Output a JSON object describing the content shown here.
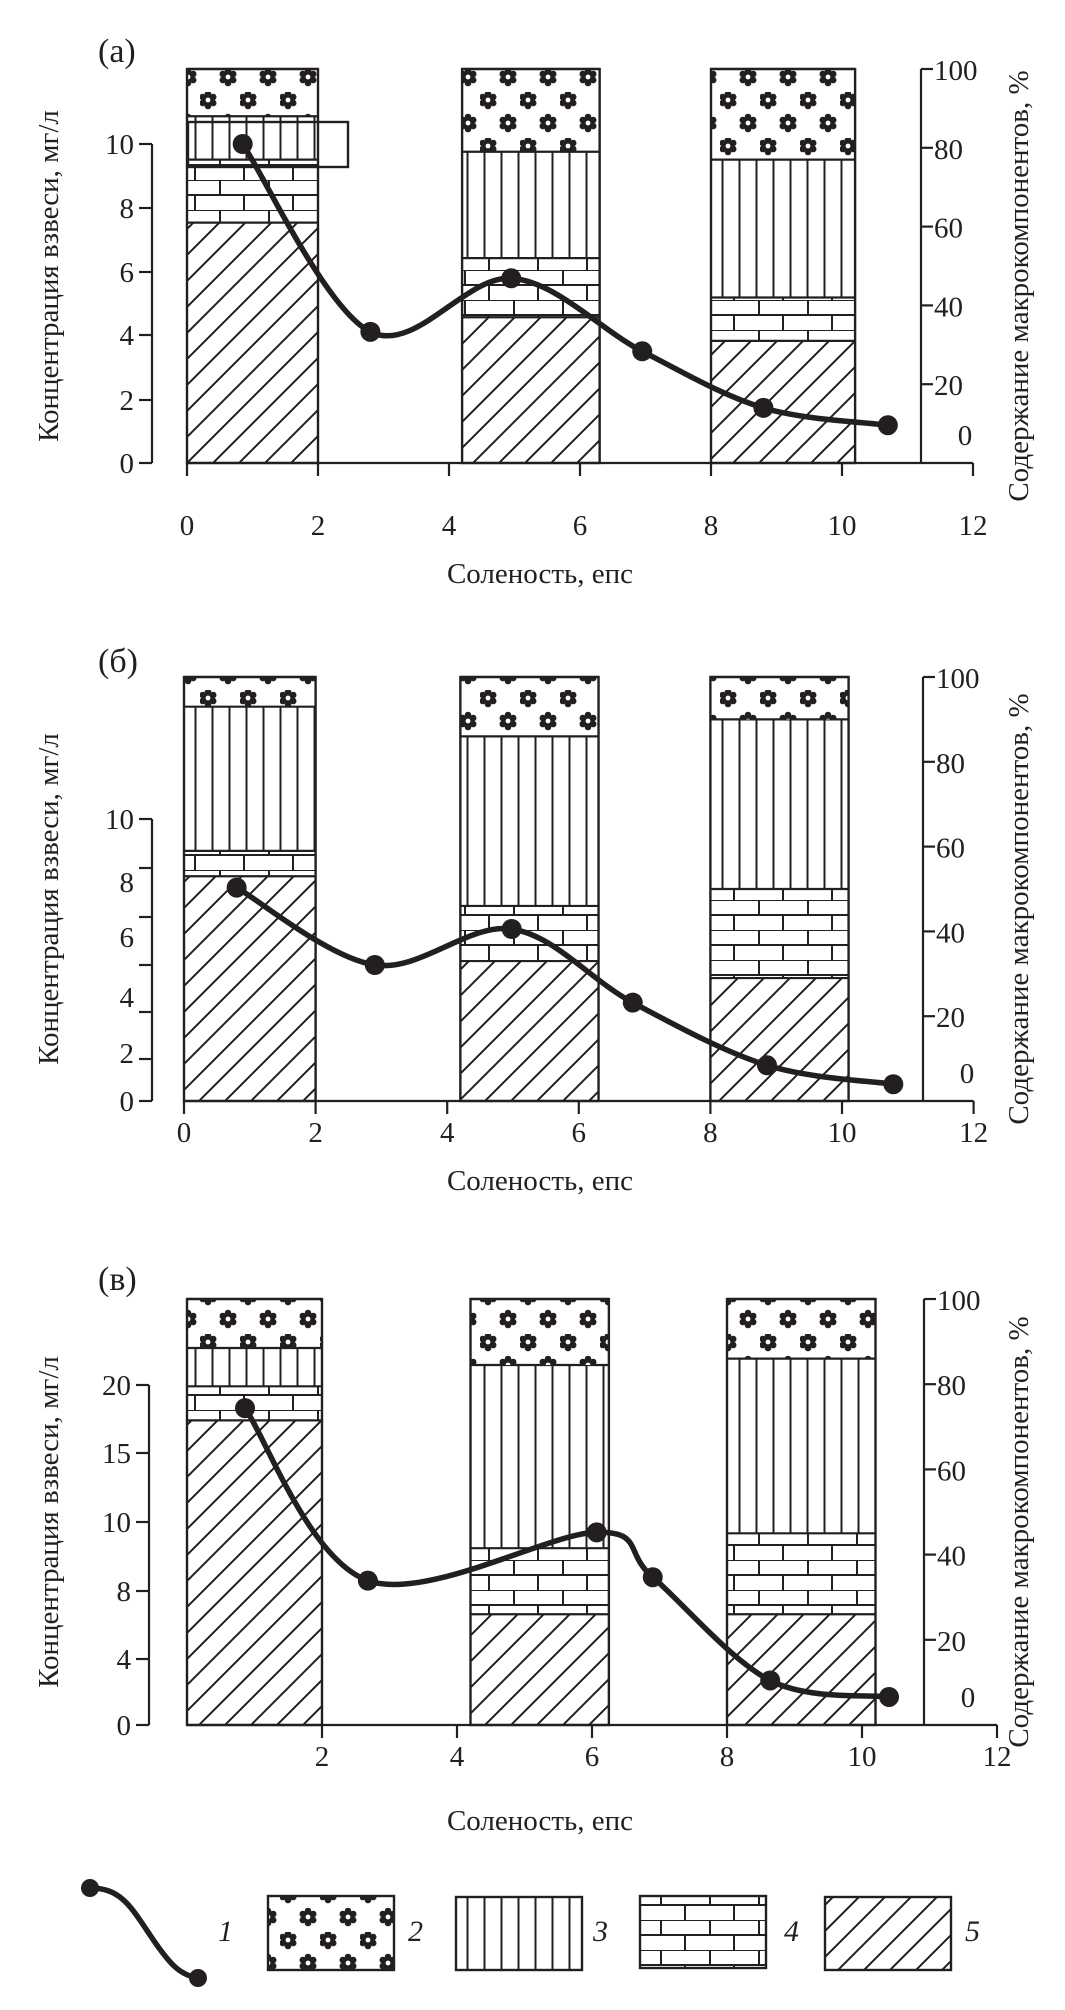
{
  "figure": {
    "legend": [
      {
        "id": "1",
        "label": "1",
        "kind": "curve",
        "meaning": "suspended matter concentration"
      },
      {
        "id": "2",
        "label": "2",
        "kind": "pattern",
        "pattern": "flowers"
      },
      {
        "id": "3",
        "label": "3",
        "kind": "pattern",
        "pattern": "vertical-lines"
      },
      {
        "id": "4",
        "label": "4",
        "kind": "pattern",
        "pattern": "bricks"
      },
      {
        "id": "5",
        "label": "5",
        "kind": "pattern",
        "pattern": "diagonal-hatch"
      }
    ],
    "colors": {
      "ink": "#231f20",
      "background": "#ffffff"
    }
  },
  "chart_data": [
    {
      "type": "bar",
      "panel": "(а)",
      "title": "(a)",
      "xlabel": "Соленость, епс",
      "ylabel": "Концентрация взвеси, мг/л",
      "y2label": "Содержание макрокомпонентов, %",
      "xlim": [
        0,
        12
      ],
      "x_ticks": [
        "0",
        "2",
        "4",
        "6",
        "8",
        "10",
        "12"
      ],
      "x_tick_values": [
        0,
        2,
        4,
        6,
        8,
        10,
        12
      ],
      "y_ticks": [
        "0",
        "2",
        "4",
        "6",
        "8",
        "10"
      ],
      "y_tick_values": [
        0,
        2,
        4,
        6,
        8,
        10
      ],
      "y2_ticks": [
        "0",
        "20",
        "40",
        "60",
        "80",
        "100"
      ],
      "y2lim": [
        0,
        100
      ],
      "stacked_bars": [
        {
          "x_range": [
            0,
            2
          ],
          "layers": {
            "5": 61,
            "4": 16,
            "3": 11,
            "2": 12
          }
        },
        {
          "x_range": [
            4.2,
            6.3
          ],
          "layers": {
            "5": 37,
            "4": 15,
            "3": 27,
            "2": 21
          }
        },
        {
          "x_range": [
            8,
            10.2
          ],
          "layers": {
            "5": 31,
            "4": 11,
            "3": 35,
            "2": 23
          }
        }
      ],
      "curve": {
        "series": "1",
        "x": [
          0.85,
          2.8,
          4.95,
          6.95,
          8.8,
          10.7
        ],
        "y": [
          10.0,
          4.1,
          5.8,
          3.5,
          1.75,
          1.2
        ]
      },
      "annotation_box": true
    },
    {
      "type": "bar",
      "panel": "(б)",
      "title": "(б)",
      "xlabel": "Соленость, епс",
      "ylabel": "Концентрация взвеси, мг/л",
      "y2label": "Содержание макрокомпонентов, %",
      "xlim": [
        0,
        12
      ],
      "x_ticks": [
        "0",
        "2",
        "4",
        "6",
        "8",
        "10",
        "12"
      ],
      "x_tick_values": [
        0,
        2,
        4,
        6,
        8,
        10,
        12
      ],
      "y_ticks": [
        "0",
        "2",
        "4",
        "6",
        "8",
        "10"
      ],
      "y_tick_values": [
        0,
        2,
        4,
        6,
        8,
        10
      ],
      "y_extra_minor_ticks": 7,
      "y2_ticks": [
        "0",
        "20",
        "40",
        "60",
        "80",
        "100"
      ],
      "y2lim": [
        0,
        100
      ],
      "stacked_bars": [
        {
          "x_range": [
            0,
            2
          ],
          "layers": {
            "5": 53,
            "4": 6,
            "3": 34,
            "2": 7
          }
        },
        {
          "x_range": [
            4.2,
            6.3
          ],
          "layers": {
            "5": 33,
            "4": 13,
            "3": 40,
            "2": 14
          }
        },
        {
          "x_range": [
            8,
            10.1
          ],
          "layers": {
            "5": 29,
            "4": 21,
            "3": 40,
            "2": 10
          }
        }
      ],
      "curve": {
        "series": "1",
        "x": [
          0.8,
          2.9,
          4.98,
          6.82,
          8.86,
          10.78
        ],
        "y": [
          8.6,
          6.0,
          7.5,
          4.4,
          1.7,
          0.8
        ]
      }
    },
    {
      "type": "bar",
      "panel": "(в)",
      "title": "(в)",
      "xlabel": "Соленость, епс",
      "ylabel": "Концентрация взвеси, мг/л",
      "y2label": "Содержание макрокомпонентов, %",
      "xlim": [
        0,
        12
      ],
      "x_ticks": [
        "2",
        "4",
        "6",
        "8",
        "10",
        "12"
      ],
      "x_tick_values": [
        2,
        4,
        6,
        8,
        10,
        12
      ],
      "y_ticks": [
        "0",
        "4",
        "8",
        "10",
        "15",
        "20"
      ],
      "y_tick_values": [
        0,
        4,
        8,
        10,
        15,
        20
      ],
      "y2_ticks": [
        "0",
        "20",
        "40",
        "60",
        "80",
        "100"
      ],
      "y2lim": [
        0,
        100
      ],
      "stacked_bars": [
        {
          "x_range": [
            0,
            2
          ],
          "layers": {
            "5": 71.5,
            "4": 8,
            "3": 9,
            "2": 11.5
          }
        },
        {
          "x_range": [
            4.2,
            6.25
          ],
          "layers": {
            "5": 26,
            "4": 15.5,
            "3": 43,
            "2": 15.5
          }
        },
        {
          "x_range": [
            8,
            10.2
          ],
          "layers": {
            "5": 26,
            "4": 19,
            "3": 41,
            "2": 14
          }
        }
      ],
      "curve": {
        "series": "1",
        "x": [
          0.86,
          2.68,
          6.07,
          6.9,
          8.64,
          10.4
        ],
        "y": [
          18.3,
          8.3,
          9.7,
          8.4,
          2.7,
          1.7
        ]
      }
    }
  ]
}
